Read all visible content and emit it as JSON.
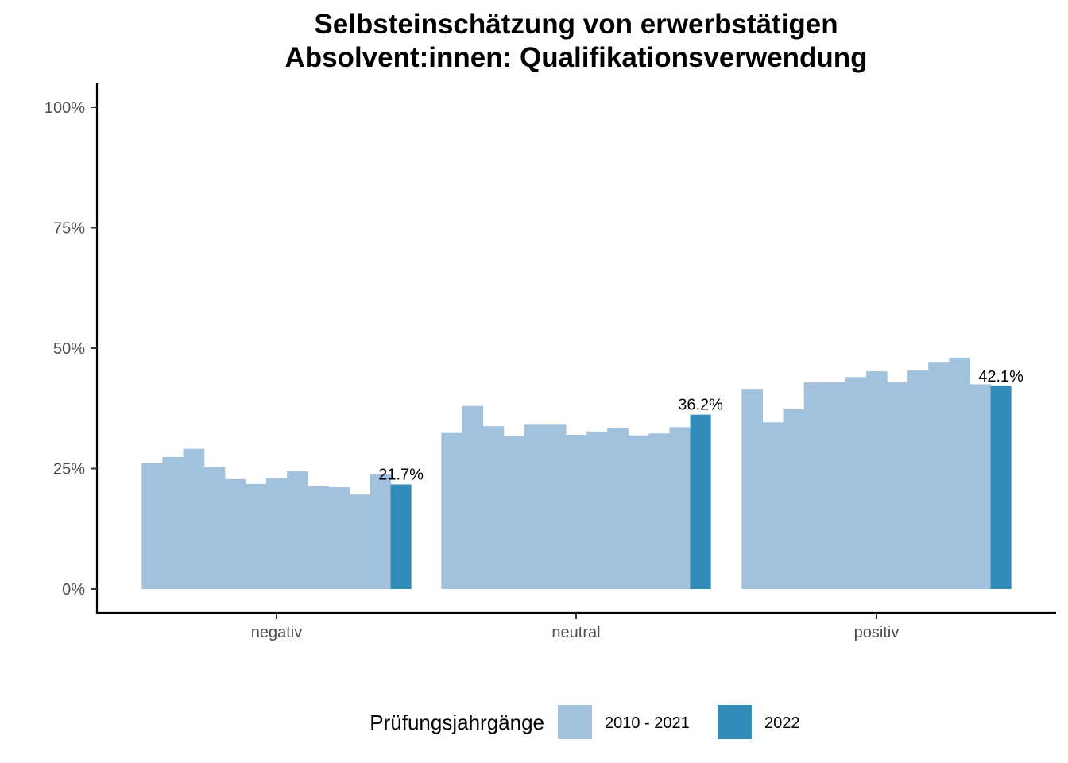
{
  "chart_data": {
    "type": "bar",
    "title_lines": [
      "Selbsteinschätzung von erwerbstätigen",
      "Absolvent:innen: Qualifikationsverwendung"
    ],
    "xlabel": "",
    "ylabel": "",
    "ylim": [
      0,
      100
    ],
    "y_ticks": [
      0,
      25,
      50,
      75,
      100
    ],
    "y_tick_labels": [
      "0%",
      "25%",
      "50%",
      "75%",
      "100%"
    ],
    "categories": [
      "negativ",
      "neutral",
      "positiv"
    ],
    "series": [
      {
        "name": "2010 - 2021",
        "color": "#a1c1dd",
        "values": [
          [
            26.2,
            27.4,
            29.1,
            25.4,
            22.8,
            21.8,
            23.0,
            24.4,
            21.3,
            21.1,
            19.6,
            23.8
          ],
          [
            32.4,
            38.0,
            33.8,
            31.7,
            34.1,
            34.1,
            32.0,
            32.7,
            33.5,
            31.9,
            32.3,
            33.6
          ],
          [
            41.4,
            34.6,
            37.3,
            42.9,
            43.0,
            44.0,
            45.2,
            42.9,
            45.4,
            47.0,
            48.0,
            42.5
          ]
        ]
      },
      {
        "name": "2022",
        "color": "#318cb9",
        "values": [
          21.7,
          36.2,
          42.1
        ],
        "labels": [
          "21.7%",
          "36.2%",
          "42.1%"
        ]
      }
    ],
    "legend": {
      "title": "Prüfungsjahrgänge",
      "entries": [
        "2010 - 2021",
        "2022"
      ],
      "position": "bottom"
    },
    "grid": false
  }
}
